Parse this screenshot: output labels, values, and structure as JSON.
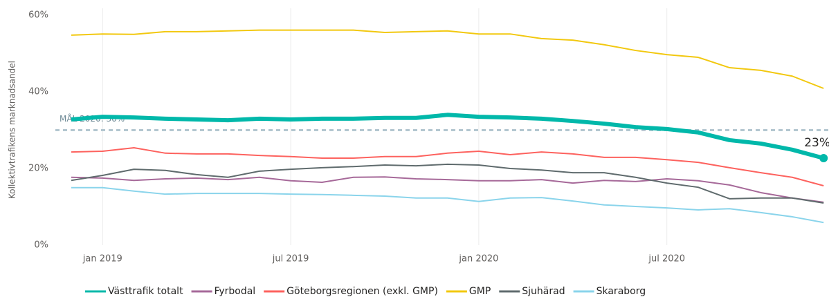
{
  "chart_data": {
    "type": "line",
    "y_axis_label": "Kollektivtrafikens marknadsandel",
    "x": [
      "2018-12",
      "2019-01",
      "2019-02",
      "2019-03",
      "2019-04",
      "2019-05",
      "2019-06",
      "2019-07",
      "2019-08",
      "2019-09",
      "2019-10",
      "2019-11",
      "2019-12",
      "2020-01",
      "2020-02",
      "2020-03",
      "2020-04",
      "2020-05",
      "2020-06",
      "2020-07",
      "2020-08",
      "2020-09",
      "2020-10",
      "2020-11",
      "2020-12"
    ],
    "xticks": [
      {
        "value": "2019-01",
        "label": "jan 2019"
      },
      {
        "value": "2019-07",
        "label": "jul 2019"
      },
      {
        "value": "2020-01",
        "label": "jan 2020"
      },
      {
        "value": "2020-07",
        "label": "jul 2020"
      }
    ],
    "ylim": [
      0,
      60
    ],
    "yticks": [
      {
        "value": 0,
        "label": "0%"
      },
      {
        "value": 20,
        "label": "20%"
      },
      {
        "value": 40,
        "label": "40%"
      },
      {
        "value": 60,
        "label": "60%"
      }
    ],
    "grid": "x",
    "legend": "bottom",
    "reference_lines": [
      {
        "value": 30,
        "label": "MÅL 2020: 30%",
        "color": "#b3c6d0"
      }
    ],
    "series": [
      {
        "name": "Västtrafik totalt",
        "color": "#01B8AA",
        "line_width": 6,
        "values": [
          32.8,
          33.5,
          33.3,
          33,
          32.8,
          32.6,
          33,
          32.8,
          33,
          33,
          33.2,
          33.2,
          34,
          33.5,
          33.3,
          33,
          32.4,
          31.7,
          30.8,
          30.3,
          29.4,
          27.4,
          26.5,
          24.9,
          22.7
        ],
        "value_labels": [
          null,
          null,
          null,
          null,
          null,
          null,
          null,
          null,
          null,
          null,
          null,
          null,
          null,
          null,
          null,
          null,
          null,
          null,
          null,
          null,
          null,
          null,
          null,
          null,
          "23%"
        ]
      },
      {
        "name": "Fyrbodal",
        "color": "#A66999",
        "line_width": 2,
        "values": [
          17.7,
          17.5,
          16.9,
          17.3,
          17.5,
          17.1,
          17.7,
          16.8,
          16.4,
          17.7,
          17.8,
          17.3,
          17.1,
          16.8,
          16.8,
          17.1,
          16.2,
          16.9,
          16.6,
          17.3,
          16.8,
          15.7,
          13.7,
          12.3,
          11.2
        ]
      },
      {
        "name": "Göteborgsregionen (exkl. GMP)",
        "color": "#FD625E",
        "line_width": 2,
        "values": [
          24.3,
          24.5,
          25.4,
          24,
          23.8,
          23.8,
          23.4,
          23.1,
          22.7,
          22.7,
          23.1,
          23.1,
          24,
          24.5,
          23.6,
          24.3,
          23.8,
          22.9,
          22.9,
          22.3,
          21.6,
          20.2,
          18.9,
          17.7,
          15.5
        ]
      },
      {
        "name": "GMP",
        "color": "#F2C80F",
        "line_width": 2,
        "values": [
          54.8,
          55.1,
          55,
          55.7,
          55.7,
          55.9,
          56.1,
          56.1,
          56.1,
          56.1,
          55.5,
          55.7,
          55.9,
          55.1,
          55.1,
          53.9,
          53.5,
          52.3,
          50.8,
          49.7,
          49,
          46.3,
          45.6,
          44.1,
          40.9
        ]
      },
      {
        "name": "Sjuhärad",
        "color": "#5F6B6D",
        "line_width": 2,
        "values": [
          16.9,
          18.2,
          19.8,
          19.5,
          18.4,
          17.7,
          19.3,
          19.8,
          20.2,
          20.5,
          20.9,
          20.7,
          21.1,
          20.9,
          20,
          19.6,
          18.9,
          18.9,
          17.7,
          16.2,
          15.1,
          12.1,
          12.3,
          12.3,
          11
        ]
      },
      {
        "name": "Skaraborg",
        "color": "#8AD4EB",
        "line_width": 2,
        "values": [
          15,
          15,
          14.1,
          13.3,
          13.5,
          13.5,
          13.5,
          13.3,
          13.2,
          13,
          12.8,
          12.3,
          12.3,
          11.4,
          12.3,
          12.4,
          11.5,
          10.5,
          10.1,
          9.7,
          9.2,
          9.5,
          8.5,
          7.4,
          5.9
        ]
      }
    ]
  }
}
